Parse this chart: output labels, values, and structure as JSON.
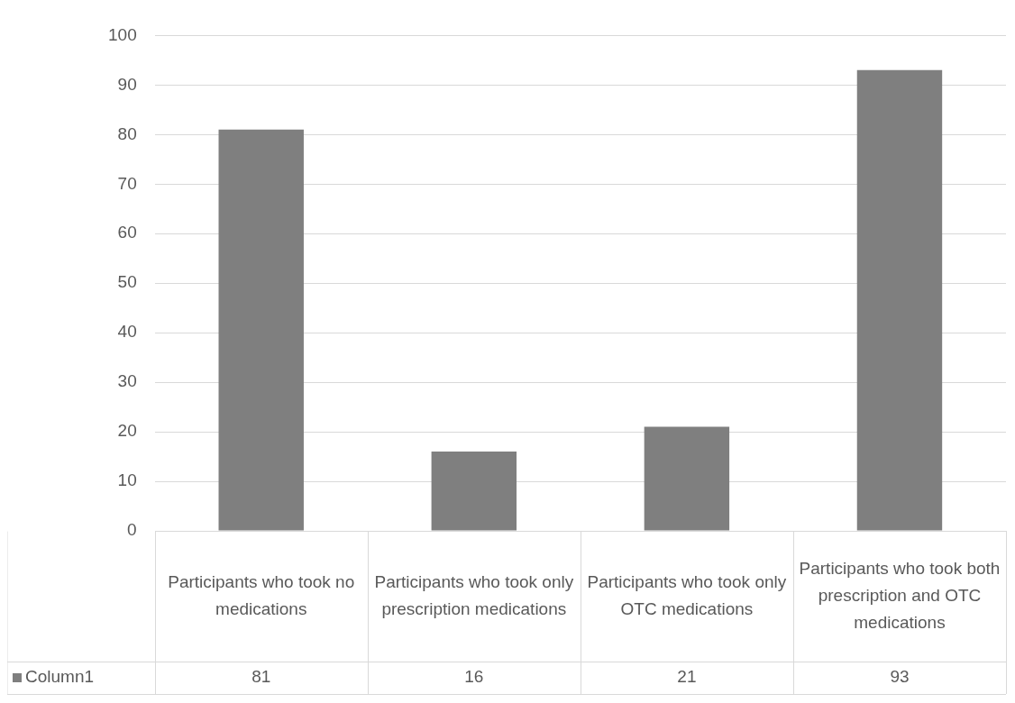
{
  "chart_data": {
    "type": "bar",
    "categories": [
      "Participants who took no medications",
      "Participants who took only prescription medications",
      "Participants who took only OTC medications",
      "Participants who took both prescription and OTC medications"
    ],
    "series": [
      {
        "name": "Column1",
        "color": "#7f7f7f",
        "values": [
          81,
          16,
          21,
          93
        ]
      }
    ],
    "ylim": [
      0,
      100
    ],
    "yticks": [
      0,
      10,
      20,
      30,
      40,
      50,
      60,
      70,
      80,
      90,
      100
    ],
    "grid": "y",
    "data_labels": true,
    "legend": "bottom"
  }
}
